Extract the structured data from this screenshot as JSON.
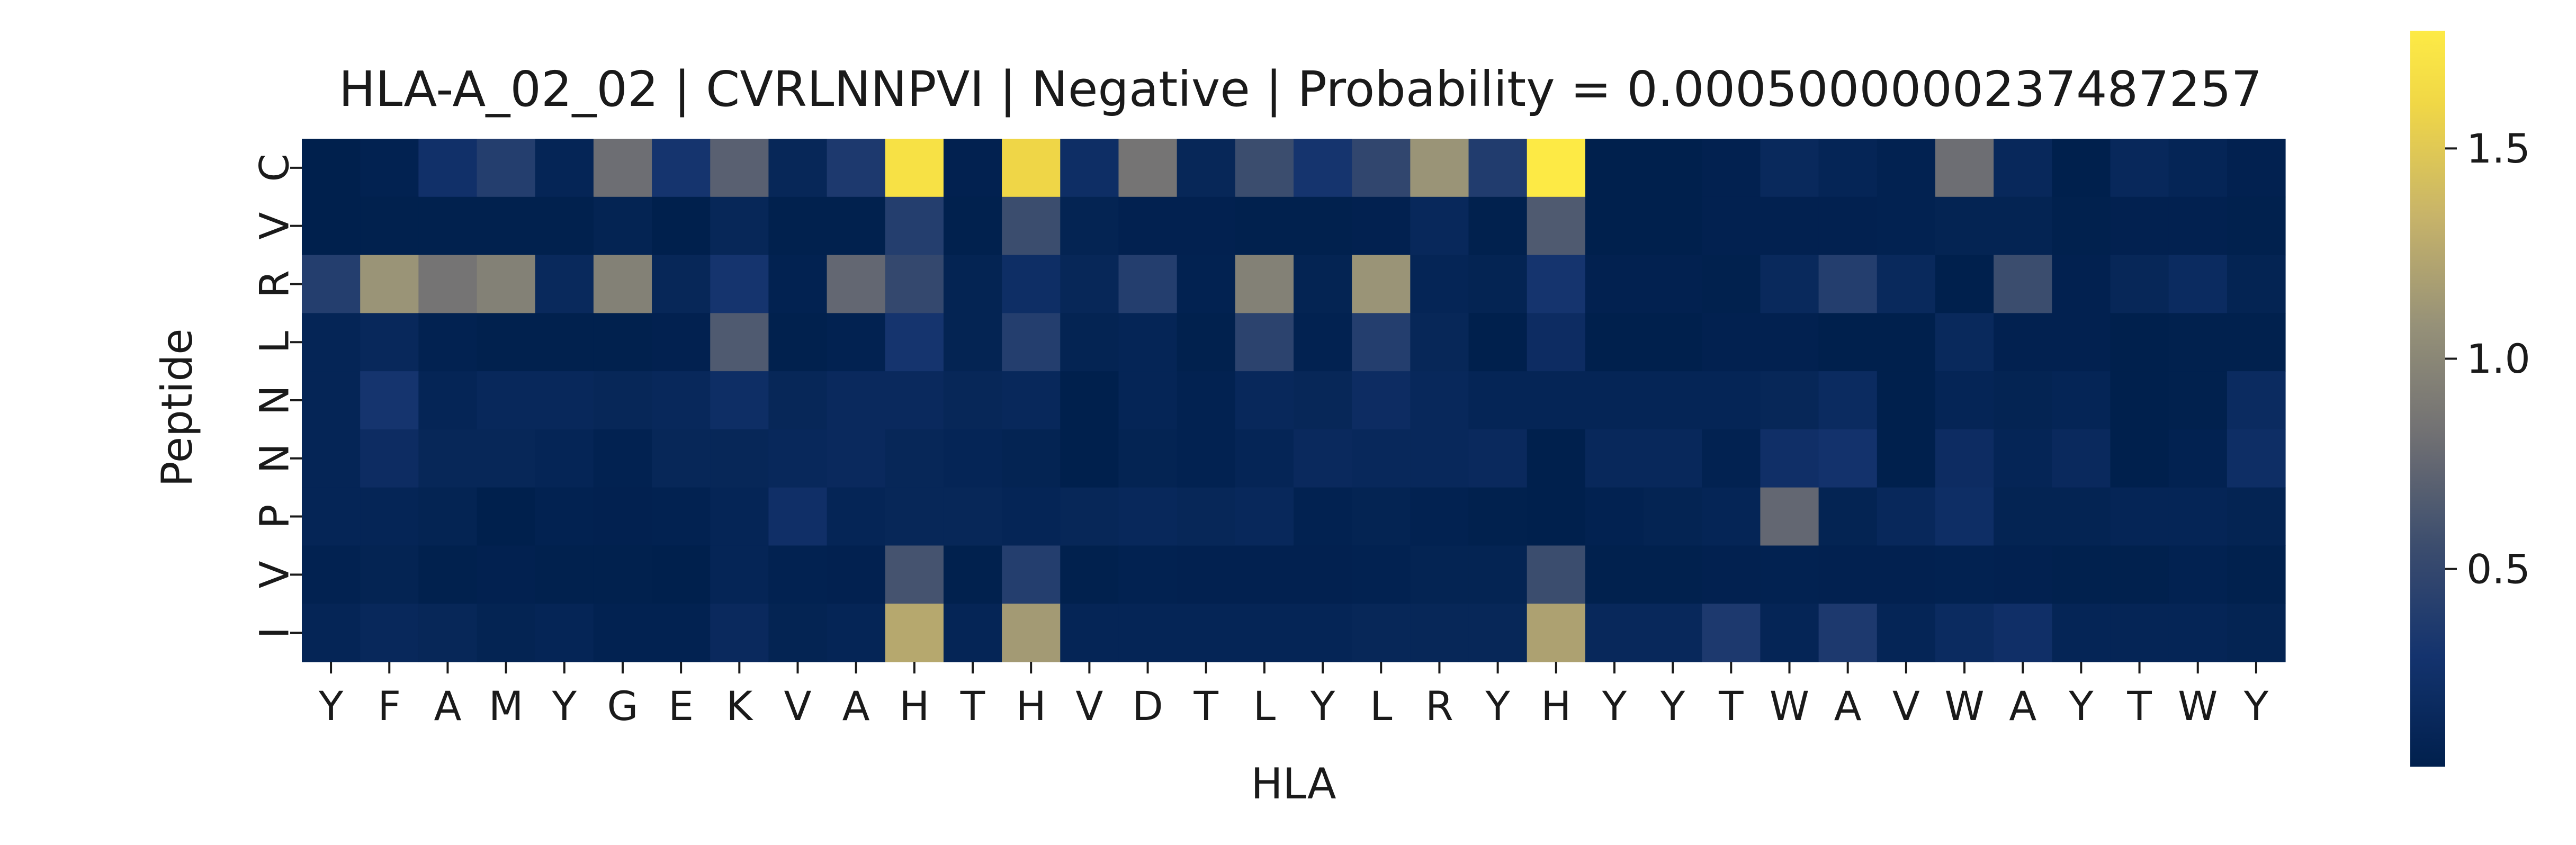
{
  "chart_data": {
    "type": "heatmap",
    "title": "HLA-A_02_02 | CVRLNNPVI | Negative | Probability = 0.0005000000237487257",
    "xlabel": "HLA",
    "ylabel": "Peptide",
    "x_categories": [
      "Y",
      "F",
      "A",
      "M",
      "Y",
      "G",
      "E",
      "K",
      "V",
      "A",
      "H",
      "T",
      "H",
      "V",
      "D",
      "T",
      "L",
      "Y",
      "L",
      "R",
      "Y",
      "H",
      "Y",
      "Y",
      "T",
      "W",
      "A",
      "V",
      "W",
      "A",
      "Y",
      "T",
      "W",
      "Y"
    ],
    "y_categories": [
      "C",
      "V",
      "R",
      "L",
      "N",
      "N",
      "P",
      "V",
      "I"
    ],
    "colormap": "cividis",
    "colorbar": {
      "range": [
        0.03,
        1.78
      ],
      "ticks": [
        0.5,
        1.0,
        1.5
      ],
      "tick_labels": [
        "0.5",
        "1.0",
        "1.5"
      ]
    },
    "values": [
      [
        0.03,
        0.06,
        0.25,
        0.4,
        0.1,
        0.8,
        0.3,
        0.7,
        0.12,
        0.35,
        1.7,
        0.05,
        1.6,
        0.22,
        0.85,
        0.12,
        0.55,
        0.3,
        0.48,
        1.1,
        0.38,
        1.78,
        0.03,
        0.03,
        0.05,
        0.15,
        0.1,
        0.06,
        0.8,
        0.14,
        0.03,
        0.14,
        0.1,
        0.05
      ],
      [
        0.02,
        0.04,
        0.04,
        0.04,
        0.04,
        0.08,
        0.02,
        0.12,
        0.04,
        0.04,
        0.4,
        0.04,
        0.55,
        0.08,
        0.05,
        0.05,
        0.04,
        0.04,
        0.05,
        0.14,
        0.04,
        0.65,
        0.03,
        0.03,
        0.05,
        0.05,
        0.05,
        0.06,
        0.08,
        0.08,
        0.04,
        0.05,
        0.05,
        0.04
      ],
      [
        0.4,
        1.1,
        0.85,
        0.95,
        0.15,
        0.95,
        0.12,
        0.3,
        0.06,
        0.75,
        0.5,
        0.08,
        0.22,
        0.12,
        0.4,
        0.06,
        0.95,
        0.08,
        1.1,
        0.1,
        0.08,
        0.3,
        0.05,
        0.05,
        0.04,
        0.15,
        0.4,
        0.15,
        0.03,
        0.55,
        0.05,
        0.12,
        0.18,
        0.08
      ],
      [
        0.1,
        0.14,
        0.06,
        0.04,
        0.04,
        0.04,
        0.05,
        0.65,
        0.04,
        0.06,
        0.3,
        0.08,
        0.4,
        0.08,
        0.1,
        0.04,
        0.45,
        0.06,
        0.4,
        0.12,
        0.03,
        0.2,
        0.03,
        0.03,
        0.05,
        0.05,
        0.03,
        0.03,
        0.15,
        0.05,
        0.05,
        0.03,
        0.04,
        0.04
      ],
      [
        0.1,
        0.3,
        0.1,
        0.14,
        0.14,
        0.12,
        0.14,
        0.22,
        0.12,
        0.16,
        0.16,
        0.12,
        0.14,
        0.03,
        0.1,
        0.06,
        0.14,
        0.12,
        0.2,
        0.14,
        0.1,
        0.1,
        0.1,
        0.1,
        0.1,
        0.12,
        0.18,
        0.03,
        0.1,
        0.08,
        0.1,
        0.03,
        0.04,
        0.18
      ],
      [
        0.1,
        0.2,
        0.12,
        0.12,
        0.1,
        0.06,
        0.12,
        0.12,
        0.14,
        0.16,
        0.12,
        0.1,
        0.08,
        0.03,
        0.08,
        0.06,
        0.1,
        0.16,
        0.14,
        0.14,
        0.16,
        0.03,
        0.14,
        0.14,
        0.06,
        0.24,
        0.28,
        0.03,
        0.2,
        0.1,
        0.16,
        0.03,
        0.06,
        0.22
      ],
      [
        0.1,
        0.1,
        0.08,
        0.03,
        0.06,
        0.05,
        0.06,
        0.1,
        0.24,
        0.1,
        0.12,
        0.12,
        0.1,
        0.12,
        0.14,
        0.12,
        0.14,
        0.06,
        0.08,
        0.06,
        0.04,
        0.03,
        0.06,
        0.08,
        0.1,
        0.75,
        0.08,
        0.14,
        0.22,
        0.08,
        0.08,
        0.1,
        0.1,
        0.08
      ],
      [
        0.06,
        0.08,
        0.04,
        0.05,
        0.04,
        0.04,
        0.02,
        0.1,
        0.06,
        0.05,
        0.6,
        0.04,
        0.4,
        0.04,
        0.06,
        0.05,
        0.05,
        0.05,
        0.06,
        0.08,
        0.08,
        0.55,
        0.04,
        0.04,
        0.05,
        0.06,
        0.05,
        0.05,
        0.06,
        0.05,
        0.04,
        0.04,
        0.06,
        0.04
      ],
      [
        0.1,
        0.14,
        0.12,
        0.08,
        0.1,
        0.06,
        0.06,
        0.16,
        0.08,
        0.1,
        1.25,
        0.1,
        1.15,
        0.1,
        0.1,
        0.1,
        0.1,
        0.1,
        0.12,
        0.12,
        0.12,
        1.2,
        0.14,
        0.14,
        0.35,
        0.1,
        0.35,
        0.1,
        0.18,
        0.24,
        0.1,
        0.1,
        0.1,
        0.08
      ]
    ]
  }
}
